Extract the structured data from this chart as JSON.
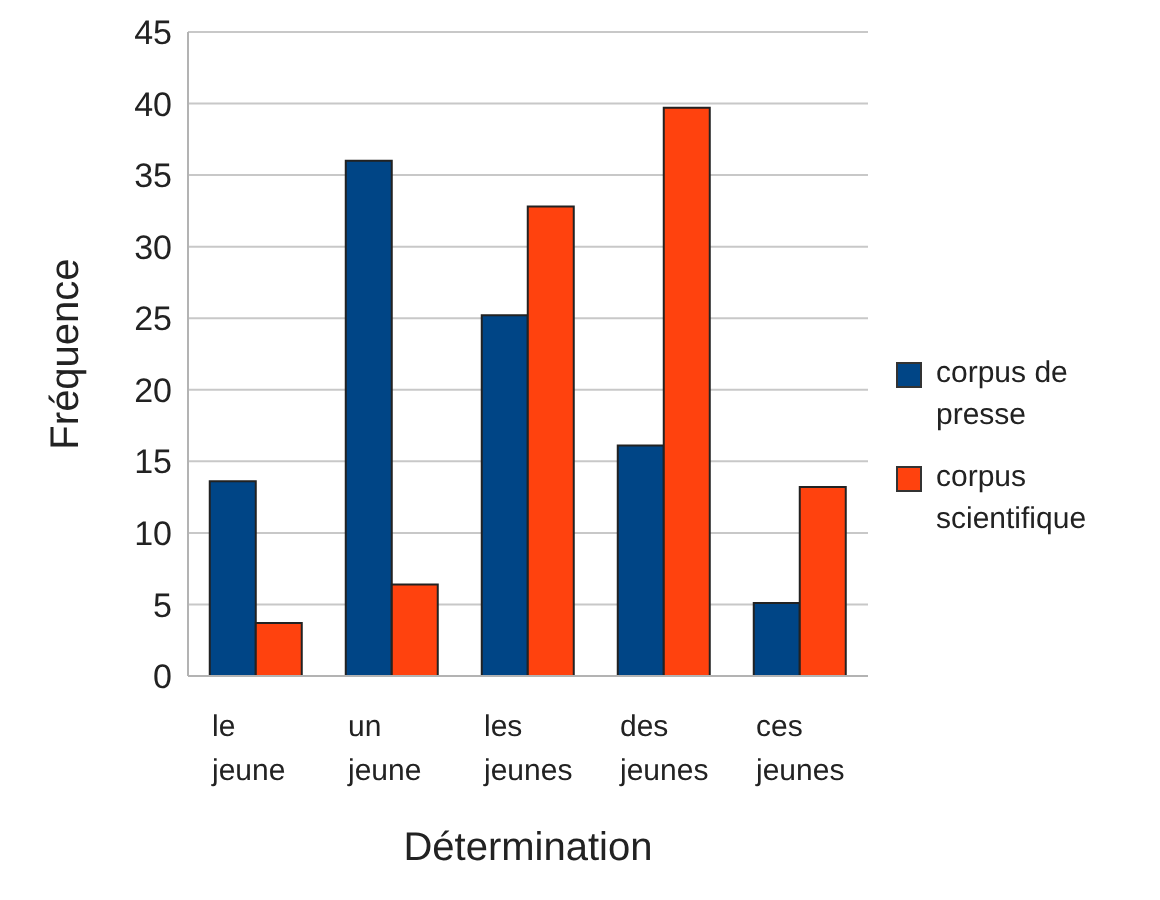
{
  "chart_data": {
    "type": "bar",
    "xlabel": "Détermination",
    "ylabel": "Fréquence",
    "categories": [
      "le jeune",
      "un jeune",
      "les jeunes",
      "des jeunes",
      "ces jeunes"
    ],
    "series": [
      {
        "name": "corpus de presse",
        "color": "#004586",
        "values": [
          13.6,
          36.0,
          25.2,
          16.1,
          5.1
        ]
      },
      {
        "name": "corpus scientifique",
        "color": "#ff420e",
        "values": [
          3.7,
          6.4,
          32.8,
          39.7,
          13.2
        ]
      }
    ],
    "ylim": [
      0,
      45
    ],
    "yticks": [
      0,
      5,
      10,
      15,
      20,
      25,
      30,
      35,
      40,
      45
    ],
    "grid": "y",
    "legend": "right"
  }
}
